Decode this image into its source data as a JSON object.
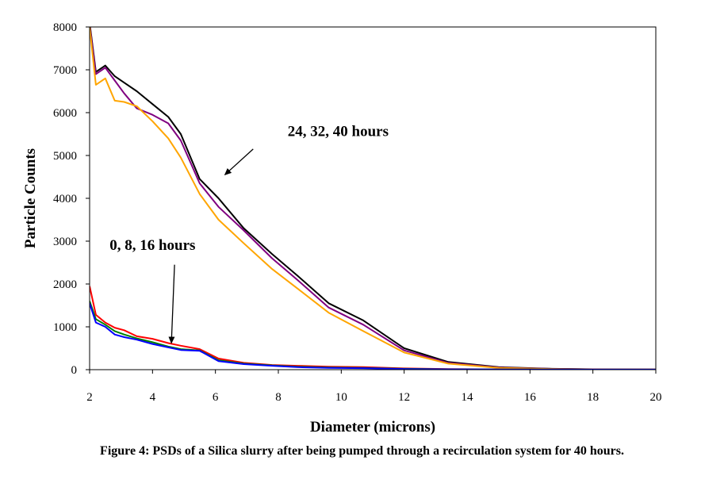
{
  "caption": "Figure 4: PSDs of a Silica slurry after being pumped through a recirculation system for 40 hours.",
  "chart_data": {
    "type": "line",
    "title": "",
    "xlabel": "Diameter (microns)",
    "ylabel": "Particle Counts",
    "xlim": [
      2,
      20
    ],
    "ylim": [
      0,
      8000
    ],
    "xticks": [
      2,
      4,
      6,
      8,
      10,
      12,
      14,
      16,
      18,
      20
    ],
    "yticks": [
      0,
      1000,
      2000,
      3000,
      4000,
      5000,
      6000,
      7000,
      8000
    ],
    "grid": false,
    "legend": "none",
    "series": [
      {
        "color": "#000000",
        "x": [
          2.0,
          2.2,
          2.5,
          2.8,
          3.1,
          3.5,
          4.0,
          4.5,
          4.9,
          5.5,
          6.1,
          6.9,
          7.8,
          8.6,
          9.6,
          10.7,
          12.0,
          13.4,
          15.0,
          16.7,
          18.0,
          20.0
        ],
        "y": [
          8100,
          6950,
          7100,
          6850,
          6700,
          6500,
          6200,
          5900,
          5500,
          4450,
          4000,
          3300,
          2700,
          2200,
          1550,
          1150,
          500,
          180,
          60,
          20,
          10,
          5
        ]
      },
      {
        "color": "#800080",
        "x": [
          2.0,
          2.2,
          2.5,
          2.8,
          3.1,
          3.5,
          4.0,
          4.5,
          4.9,
          5.5,
          6.1,
          6.9,
          7.8,
          8.6,
          9.6,
          10.7,
          12.0,
          13.4,
          15.0,
          16.7,
          18.0,
          20.0
        ],
        "y": [
          8050,
          6900,
          7050,
          6750,
          6450,
          6100,
          5950,
          5750,
          5350,
          4350,
          3800,
          3250,
          2600,
          2100,
          1450,
          1050,
          450,
          160,
          50,
          18,
          8,
          5
        ]
      },
      {
        "color": "#FFA500",
        "x": [
          2.0,
          2.2,
          2.5,
          2.8,
          3.1,
          3.5,
          4.0,
          4.5,
          4.9,
          5.5,
          6.1,
          6.9,
          7.8,
          8.6,
          9.6,
          10.7,
          12.0,
          13.4,
          15.0,
          16.7,
          18.0,
          20.0
        ],
        "y": [
          8000,
          6650,
          6800,
          6280,
          6250,
          6150,
          5800,
          5400,
          4950,
          4100,
          3500,
          2950,
          2350,
          1900,
          1330,
          900,
          400,
          140,
          40,
          15,
          5,
          5
        ]
      },
      {
        "color": "#FF0000",
        "x": [
          2.0,
          2.2,
          2.5,
          2.8,
          3.1,
          3.5,
          4.0,
          4.5,
          4.9,
          5.5,
          6.1,
          6.9,
          7.8,
          8.6,
          9.6,
          10.7,
          12.0,
          13.4,
          15.0,
          16.7,
          18.0,
          20.0
        ],
        "y": [
          1950,
          1280,
          1100,
          980,
          920,
          780,
          720,
          620,
          560,
          480,
          260,
          160,
          110,
          90,
          70,
          60,
          30,
          15,
          8,
          5,
          3,
          2
        ]
      },
      {
        "color": "#008000",
        "x": [
          2.0,
          2.2,
          2.5,
          2.8,
          3.1,
          3.5,
          4.0,
          4.5,
          4.9,
          5.5,
          6.1,
          6.9,
          7.8,
          8.6,
          9.6,
          10.7,
          12.0,
          13.4,
          15.0,
          16.7,
          18.0,
          20.0
        ],
        "y": [
          1600,
          1180,
          1050,
          900,
          820,
          730,
          640,
          540,
          480,
          450,
          220,
          140,
          100,
          70,
          50,
          40,
          20,
          10,
          5,
          3,
          2,
          1
        ]
      },
      {
        "color": "#0000FF",
        "x": [
          2.0,
          2.2,
          2.5,
          2.8,
          3.1,
          3.5,
          4.0,
          4.5,
          4.9,
          5.5,
          6.1,
          6.9,
          7.8,
          8.6,
          9.6,
          10.7,
          12.0,
          13.4,
          15.0,
          16.7,
          18.0,
          20.0
        ],
        "y": [
          1550,
          1100,
          1000,
          820,
          760,
          700,
          600,
          520,
          460,
          440,
          200,
          130,
          90,
          60,
          40,
          35,
          15,
          8,
          4,
          2,
          1,
          1
        ]
      }
    ],
    "annotations": [
      {
        "text": "24, 32, 40 hours",
        "label_at": [
          9.9,
          5450
        ],
        "arrow_from": [
          7.2,
          5150
        ],
        "arrow_to": [
          6.3,
          4550
        ]
      },
      {
        "text": "0, 8, 16 hours",
        "label_at": [
          4.0,
          2800
        ],
        "arrow_from": [
          4.7,
          2450
        ],
        "arrow_to": [
          4.6,
          620
        ]
      }
    ]
  }
}
